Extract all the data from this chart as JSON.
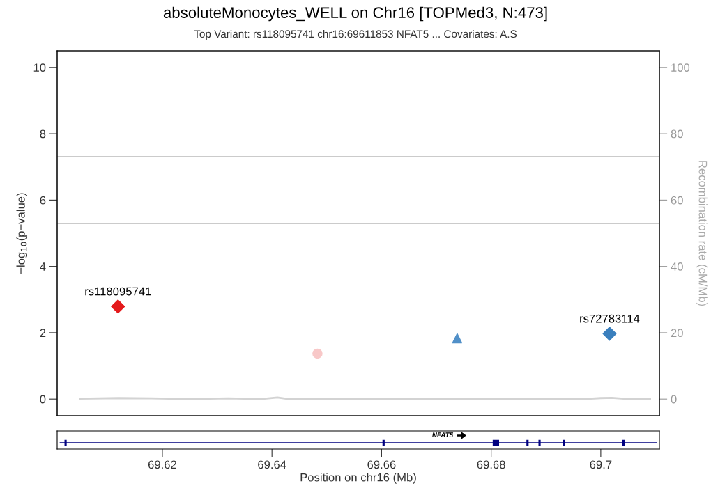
{
  "chart_data": [
    {
      "type": "scatter",
      "title": "absoluteMonocytes_WELL on Chr16 [TOPMed3, N:473]",
      "subtitle": "Top Variant: rs118095741 chr16:69611853 NFAT5 ... Covariates: A.S",
      "ylabel": "−log$_{10}$(p−value)",
      "y2label": "Recombination rate (cM/Mb)",
      "xlim": [
        69.6008,
        69.7107
      ],
      "ylim": [
        -0.5,
        10.5
      ],
      "yticks": [
        0,
        2,
        4,
        6,
        8,
        10
      ],
      "y2lim": [
        -5,
        105
      ],
      "y2ticks": [
        0,
        20,
        40,
        60,
        80,
        100
      ],
      "grid": false,
      "series": [
        {
          "type": "line",
          "axis": "y2",
          "color": "#d3d3d3",
          "marker": "none",
          "x": [
            69.605,
            69.612,
            69.618,
            69.625,
            69.632,
            69.638,
            69.641,
            69.643,
            69.65,
            69.66,
            69.67,
            69.68,
            69.69,
            69.697,
            69.7,
            69.702,
            69.705,
            69.709
          ],
          "values": [
            0.1,
            0.3,
            0.2,
            0.0,
            0.2,
            0.0,
            0.5,
            0.0,
            0.0,
            0.1,
            0.0,
            0.0,
            0.0,
            0.0,
            0.3,
            0.4,
            0.0,
            0.0
          ]
        },
        {
          "type": "scatter",
          "color": "#e41a1c",
          "marker": "diamond",
          "x": [
            69.6119
          ],
          "values": [
            2.79
          ]
        },
        {
          "type": "scatter",
          "color": "#f8c8c8",
          "marker": "circle",
          "x": [
            69.6483
          ],
          "values": [
            1.37
          ]
        },
        {
          "type": "scatter",
          "color": "#5190c8",
          "marker": "triangle",
          "x": [
            69.6738
          ],
          "values": [
            1.83
          ]
        },
        {
          "type": "scatter",
          "color": "#3a7fbd",
          "marker": "diamond",
          "x": [
            69.7016
          ],
          "values": [
            1.97
          ]
        }
      ],
      "ref_lines": [
        {
          "axis": "y",
          "value": 7.3,
          "color": "#333333"
        },
        {
          "axis": "y",
          "value": 5.3,
          "color": "#333333"
        }
      ],
      "xlabel": "Position on chr16 (Mb)",
      "xticks": [
        69.62,
        69.64,
        69.66,
        69.68,
        69.7
      ],
      "annotations": [
        {
          "text": "rs118095741",
          "x": 69.6119,
          "y": 2.79
        },
        {
          "text": "rs72783114",
          "x": 69.7016,
          "y": 1.97
        },
        "NFAT5"
      ]
    }
  ]
}
